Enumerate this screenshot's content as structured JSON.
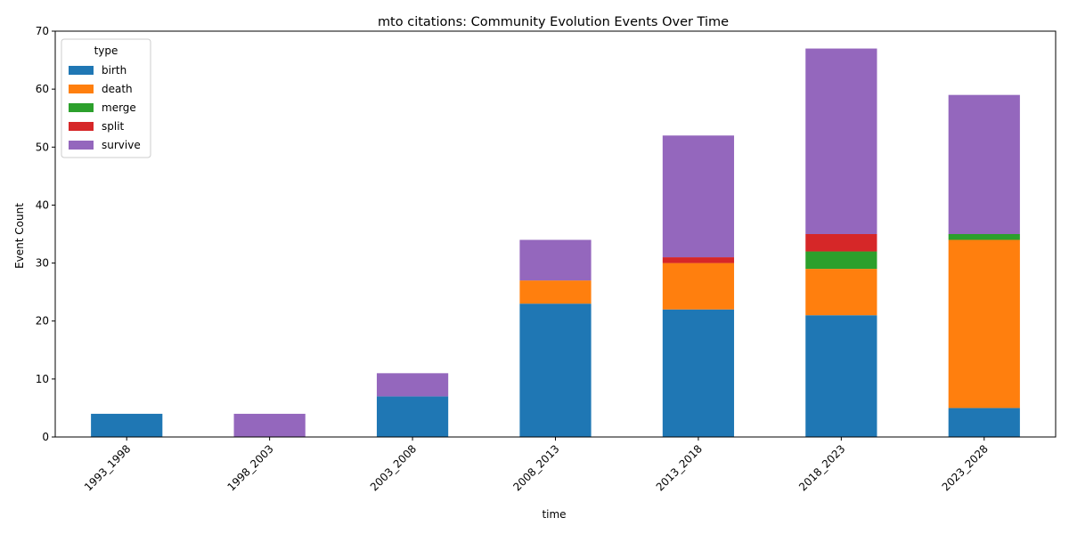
{
  "chart_data": {
    "type": "bar",
    "stacked": true,
    "title": "mto citations: Community Evolution Events Over Time",
    "xlabel": "time",
    "ylabel": "Event Count",
    "ylim": [
      0,
      70
    ],
    "yticks": [
      0,
      10,
      20,
      30,
      40,
      50,
      60,
      70
    ],
    "grid": false,
    "legend": {
      "title": "type",
      "placement": "top-left"
    },
    "categories": [
      "1993_1998",
      "1998_2003",
      "2003_2008",
      "2008_2013",
      "2013_2018",
      "2018_2023",
      "2023_2028"
    ],
    "series": [
      {
        "name": "birth",
        "color": "#1f77b4",
        "values": [
          4,
          0,
          7,
          23,
          22,
          21,
          5
        ]
      },
      {
        "name": "death",
        "color": "#ff7f0e",
        "values": [
          0,
          0,
          0,
          4,
          8,
          8,
          29
        ]
      },
      {
        "name": "merge",
        "color": "#2ca02c",
        "values": [
          0,
          0,
          0,
          0,
          0,
          3,
          1
        ]
      },
      {
        "name": "split",
        "color": "#d62728",
        "values": [
          0,
          0,
          0,
          0,
          1,
          3,
          0
        ]
      },
      {
        "name": "survive",
        "color": "#9467bd",
        "values": [
          0,
          4,
          4,
          7,
          21,
          32,
          24
        ]
      }
    ]
  }
}
